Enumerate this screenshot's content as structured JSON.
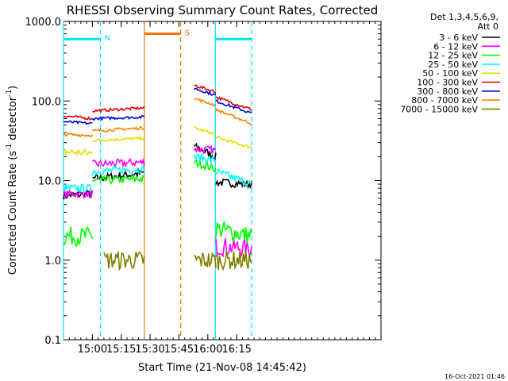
{
  "chart_data": {
    "type": "line",
    "title": "RHESSI Observing Summary Count Rates, Corrected",
    "xlabel": "Start Time (21-Nov-08 14:45:42)",
    "ylabel_main": "Corrected Count Rate (s",
    "ylabel_sup": "-1",
    "ylabel_tail": " detector",
    "ylabel_end": ")",
    "yscale": "log",
    "ylim": [
      0.1,
      1000
    ],
    "yticks": [
      {
        "value": 0.1,
        "label": "0.1"
      },
      {
        "value": 1,
        "label": "1.0"
      },
      {
        "value": 10,
        "label": "10.0"
      },
      {
        "value": 100,
        "label": "100.0"
      },
      {
        "value": 1000,
        "label": "1000.0"
      }
    ],
    "xlim_minutes": [
      14.75,
      17.5
    ],
    "xlim_label": [
      "14:45:42",
      "17:30:00"
    ],
    "xticks": [
      {
        "minutes": 0,
        "label": "15:00",
        "t": 15.0
      },
      {
        "minutes": 15,
        "label": "15:15",
        "t": 15.25
      },
      {
        "minutes": 30,
        "label": "15:30",
        "t": 15.5
      },
      {
        "minutes": 45,
        "label": "15:45",
        "t": 15.75
      },
      {
        "minutes": 60,
        "label": "16:00",
        "t": 16.0
      },
      {
        "minutes": 75,
        "label": "16:15",
        "t": 16.25
      }
    ],
    "legend_header": [
      "Det 1,3,4,5,6,9,",
      "Att 0"
    ],
    "legend_placement": "top-right, outside plot",
    "series": [
      {
        "name": "3 - 6 keV",
        "color": "#000000",
        "segments": [
          {
            "t0": 14.75,
            "t1": 15.0,
            "v0": 6.5,
            "v1": 6.8
          },
          {
            "t0": 15.0,
            "t1": 15.45,
            "v0": 10.5,
            "v1": 12.5
          },
          {
            "t0": 15.88,
            "t1": 16.07,
            "v0": 27,
            "v1": 20
          },
          {
            "t0": 16.07,
            "t1": 16.38,
            "v0": 9.5,
            "v1": 9.0
          }
        ]
      },
      {
        "name": "6 - 12 keV",
        "color": "#ff00ff",
        "segments": [
          {
            "t0": 14.75,
            "t1": 15.0,
            "v0": 6.8,
            "v1": 6.8
          },
          {
            "t0": 15.0,
            "t1": 15.45,
            "v0": 16,
            "v1": 17
          },
          {
            "t0": 15.88,
            "t1": 16.07,
            "v0": 25,
            "v1": 24
          },
          {
            "t0": 16.07,
            "t1": 16.38,
            "v0": 1.5,
            "v1": 1.4
          }
        ]
      },
      {
        "name": "12 - 25 keV",
        "color": "#00ff00",
        "segments": [
          {
            "t0": 14.75,
            "t1": 15.0,
            "v0": 2.0,
            "v1": 2.0
          },
          {
            "t0": 15.0,
            "t1": 15.45,
            "v0": 10.0,
            "v1": 10.5
          },
          {
            "t0": 15.88,
            "t1": 16.07,
            "v0": 17,
            "v1": 14
          },
          {
            "t0": 16.07,
            "t1": 16.38,
            "v0": 2.5,
            "v1": 2.0
          }
        ]
      },
      {
        "name": "25 - 50 keV",
        "color": "#00ffff",
        "segments": [
          {
            "t0": 14.75,
            "t1": 15.0,
            "v0": 8.0,
            "v1": 8.0
          },
          {
            "t0": 15.0,
            "t1": 15.45,
            "v0": 13,
            "v1": 14
          },
          {
            "t0": 15.88,
            "t1": 16.07,
            "v0": 20,
            "v1": 18
          },
          {
            "t0": 16.07,
            "t1": 16.38,
            "v0": 13,
            "v1": 9.0
          }
        ]
      },
      {
        "name": "50 - 100 keV",
        "color": "#e0e000",
        "segments": [
          {
            "t0": 14.75,
            "t1": 15.0,
            "v0": 23,
            "v1": 22
          },
          {
            "t0": 15.0,
            "t1": 15.45,
            "v0": 32,
            "v1": 34
          },
          {
            "t0": 15.88,
            "t1": 16.07,
            "v0": 46,
            "v1": 38
          },
          {
            "t0": 16.07,
            "t1": 16.38,
            "v0": 35,
            "v1": 26
          }
        ]
      },
      {
        "name": "100 - 300 keV",
        "color": "#e00000",
        "segments": [
          {
            "t0": 14.75,
            "t1": 15.0,
            "v0": 65,
            "v1": 60
          },
          {
            "t0": 15.0,
            "t1": 15.45,
            "v0": 75,
            "v1": 82
          },
          {
            "t0": 15.88,
            "t1": 16.07,
            "v0": 158,
            "v1": 130
          },
          {
            "t0": 16.07,
            "t1": 16.38,
            "v0": 112,
            "v1": 78
          }
        ]
      },
      {
        "name": "300 - 800 keV",
        "color": "#0000dd",
        "segments": [
          {
            "t0": 14.75,
            "t1": 15.0,
            "v0": 55,
            "v1": 52
          },
          {
            "t0": 15.0,
            "t1": 15.45,
            "v0": 60,
            "v1": 63
          },
          {
            "t0": 15.88,
            "t1": 16.07,
            "v0": 145,
            "v1": 118
          },
          {
            "t0": 16.07,
            "t1": 16.38,
            "v0": 100,
            "v1": 70
          }
        ]
      },
      {
        "name": "800 - 7000 keV",
        "color": "#ff8000",
        "segments": [
          {
            "t0": 14.75,
            "t1": 15.0,
            "v0": 38,
            "v1": 37
          },
          {
            "t0": 15.0,
            "t1": 15.45,
            "v0": 42,
            "v1": 46
          },
          {
            "t0": 15.88,
            "t1": 16.07,
            "v0": 108,
            "v1": 88
          },
          {
            "t0": 16.07,
            "t1": 16.38,
            "v0": 78,
            "v1": 52
          }
        ]
      },
      {
        "name": "7000 - 15000 keV",
        "color": "#808000",
        "segments": [
          {
            "t0": 15.1,
            "t1": 15.45,
            "v0": 1.0,
            "v1": 1.0
          },
          {
            "t0": 15.88,
            "t1": 16.07,
            "v0": 1.0,
            "v1": 1.0
          },
          {
            "t0": 16.07,
            "t1": 16.38,
            "v0": 1.0,
            "v1": 1.0
          }
        ]
      }
    ],
    "markers": [
      {
        "type": "solid",
        "t": 14.75,
        "color": "#00e5ee"
      },
      {
        "type": "dashed",
        "t": 15.07,
        "color": "#00e5ee"
      },
      {
        "type": "solid",
        "t": 15.45,
        "color": "#ee7700"
      },
      {
        "type": "dashed",
        "t": 15.765,
        "color": "#ee7700"
      },
      {
        "type": "solid",
        "t": 16.065,
        "color": "#00e5ee"
      },
      {
        "type": "dashed",
        "t": 16.38,
        "color": "#00e5ee"
      }
    ],
    "bars": [
      {
        "label": "N",
        "t0": 14.75,
        "t1": 15.07,
        "value": 600,
        "color": "#00e5ee"
      },
      {
        "label": "S",
        "t0": 15.45,
        "t1": 15.765,
        "value": 700,
        "color": "#ee7700"
      },
      {
        "label": "",
        "t0": 16.065,
        "t1": 16.38,
        "value": 600,
        "color": "#00e5ee"
      }
    ],
    "grid": false
  },
  "footer_timestamp": "16-Oct-2021 01:46"
}
